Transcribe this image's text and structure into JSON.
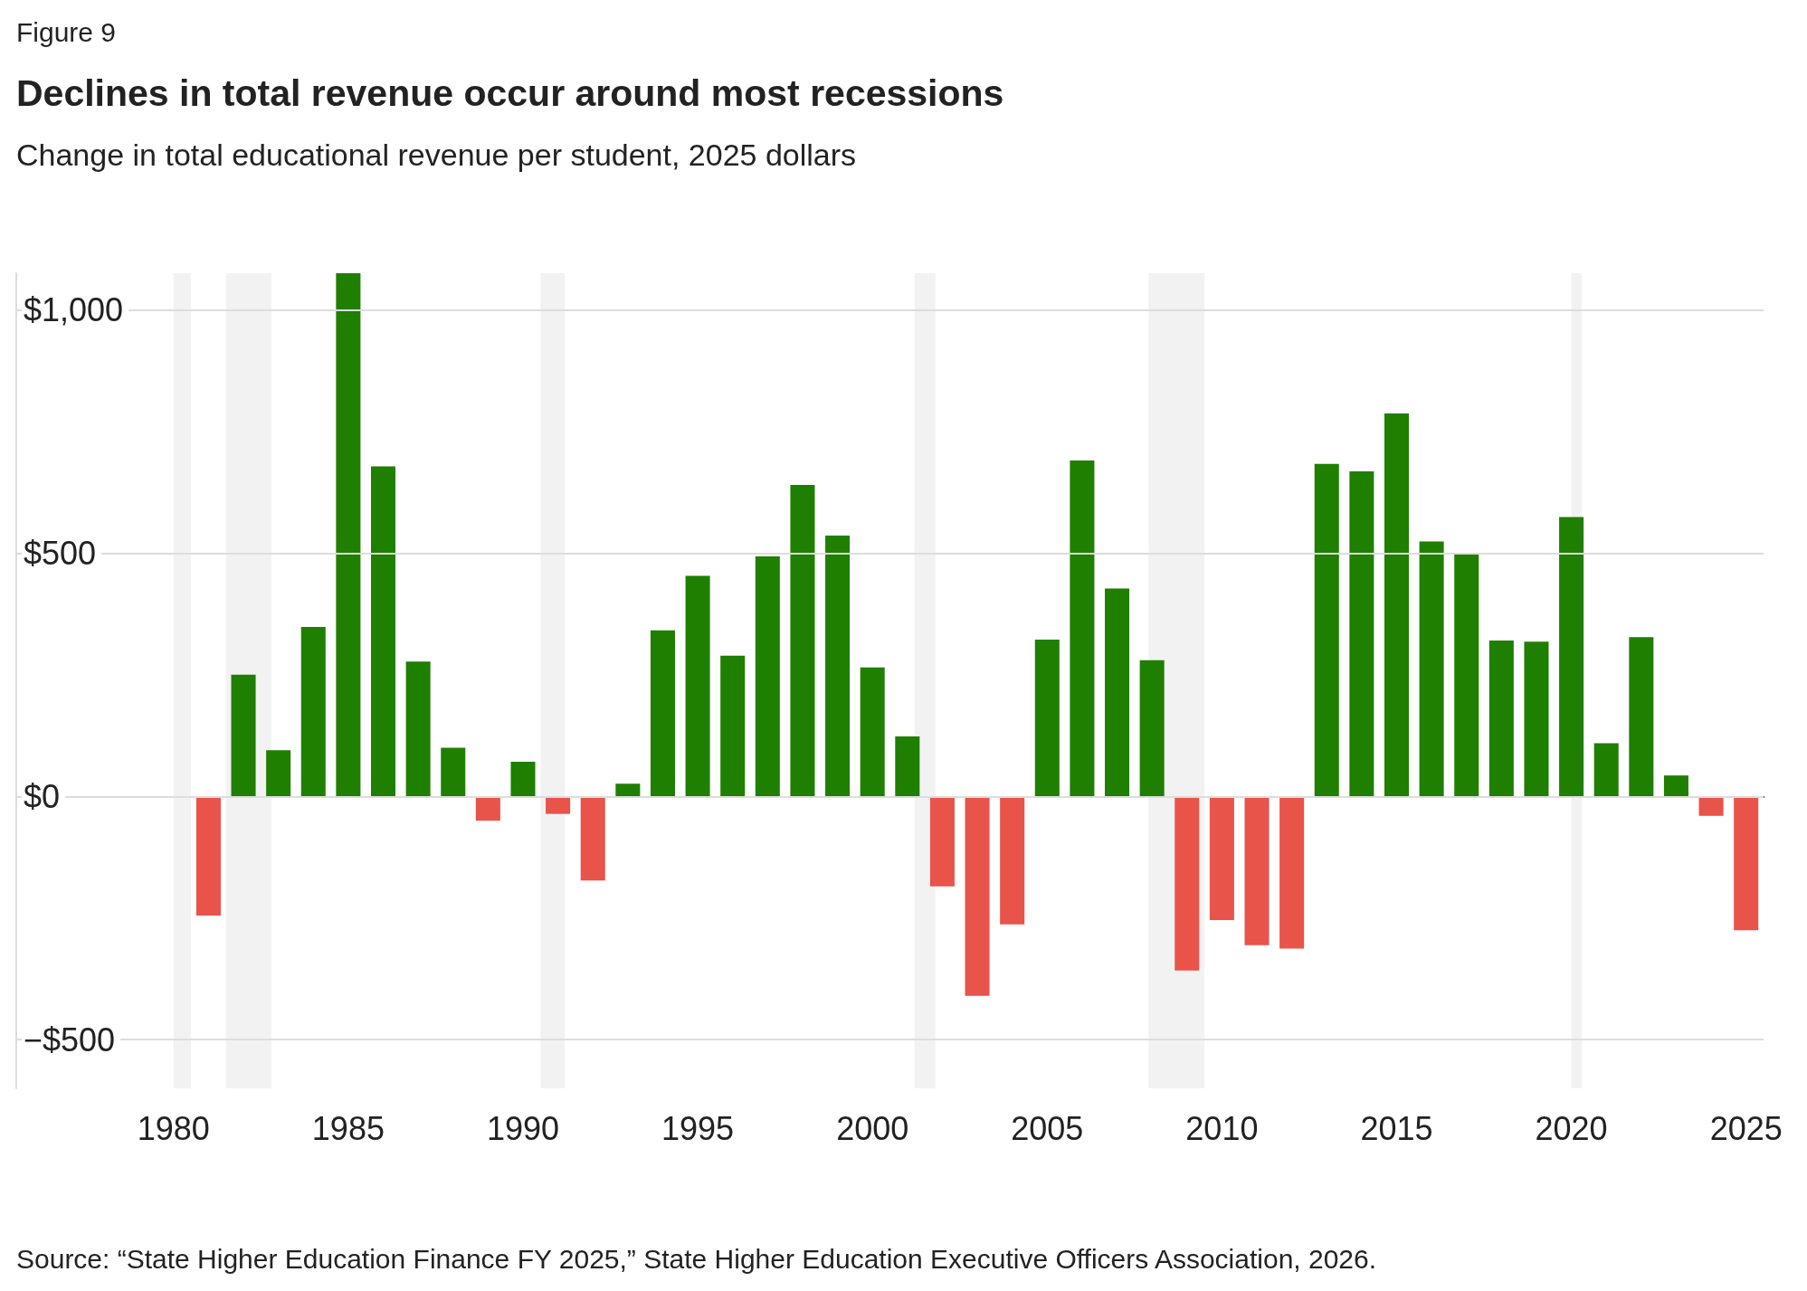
{
  "chart_data": {
    "type": "bar",
    "title": "Declines in total revenue occur around most recessions",
    "subtitle": "Change in total educational revenue per student, 2025 dollars",
    "annotations": [
      "Figure 9",
      "Source: “State Higher Education Finance FY 2025,” State Higher Education Executive Officers Association, 2026."
    ],
    "x": [
      1981,
      1982,
      1983,
      1984,
      1985,
      1986,
      1987,
      1988,
      1989,
      1990,
      1991,
      1992,
      1993,
      1994,
      1995,
      1996,
      1997,
      1998,
      1999,
      2000,
      2001,
      2002,
      2003,
      2004,
      2005,
      2006,
      2007,
      2008,
      2009,
      2010,
      2011,
      2012,
      2013,
      2014,
      2015,
      2016,
      2017,
      2018,
      2019,
      2020,
      2021,
      2022,
      2023,
      2024,
      2025
    ],
    "values": [
      -245,
      250,
      95,
      348,
      1075,
      678,
      277,
      100,
      -50,
      71,
      -36,
      -173,
      26,
      341,
      453,
      289,
      493,
      640,
      536,
      265,
      123,
      -185,
      -410,
      -263,
      322,
      690,
      427,
      280,
      -358,
      -254,
      -306,
      -313,
      683,
      668,
      787,
      524,
      500,
      320,
      318,
      574,
      109,
      327,
      43,
      -40,
      -275
    ],
    "colors": [
      "#e8534a",
      "#1f7f00",
      "#1f7f00",
      "#1f7f00",
      "#1f7f00",
      "#1f7f00",
      "#1f7f00",
      "#1f7f00",
      "#e8534a",
      "#1f7f00",
      "#e8534a",
      "#e8534a",
      "#1f7f00",
      "#1f7f00",
      "#1f7f00",
      "#1f7f00",
      "#1f7f00",
      "#1f7f00",
      "#1f7f00",
      "#1f7f00",
      "#1f7f00",
      "#e8534a",
      "#e8534a",
      "#e8534a",
      "#1f7f00",
      "#1f7f00",
      "#1f7f00",
      "#1f7f00",
      "#e8534a",
      "#e8534a",
      "#e8534a",
      "#e8534a",
      "#1f7f00",
      "#1f7f00",
      "#1f7f00",
      "#1f7f00",
      "#1f7f00",
      "#1f7f00",
      "#1f7f00",
      "#1f7f00",
      "#1f7f00",
      "#1f7f00",
      "#1f7f00",
      "#e8534a",
      "#e8534a"
    ],
    "xlim": [
      1975.5,
      2025.5
    ],
    "xticks": [
      1980,
      1985,
      1990,
      1995,
      2000,
      2005,
      2010,
      2015,
      2020,
      2025
    ],
    "ylim": [
      -600,
      1075
    ],
    "yticks": [
      {
        "value": -500,
        "label": "−$500"
      },
      {
        "value": 0,
        "label": "$0"
      },
      {
        "value": 500,
        "label": "$500"
      },
      {
        "value": 1000,
        "label": "$1,000"
      }
    ],
    "grid": "y",
    "bands": [
      {
        "axis": "x",
        "from": 1980,
        "to": 1980.5,
        "color": "#f2f2f2"
      },
      {
        "axis": "x",
        "from": 1981.5,
        "to": 1982.8,
        "color": "#f2f2f2"
      },
      {
        "axis": "x",
        "from": 1990.5,
        "to": 1991.2,
        "color": "#f2f2f2"
      },
      {
        "axis": "x",
        "from": 2001.2,
        "to": 2001.8,
        "color": "#f2f2f2"
      },
      {
        "axis": "x",
        "from": 2007.9,
        "to": 2009.5,
        "color": "#f2f2f2"
      },
      {
        "axis": "x",
        "from": 2020,
        "to": 2020.3,
        "color": "#f2f2f2"
      }
    ]
  }
}
